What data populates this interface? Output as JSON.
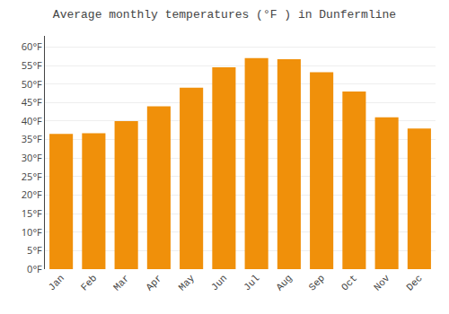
{
  "chart_data": {
    "type": "bar",
    "title": "Average monthly temperatures (°F ) in Dunfermline",
    "categories": [
      "Jan",
      "Feb",
      "Mar",
      "Apr",
      "May",
      "Jun",
      "Jul",
      "Aug",
      "Sep",
      "Oct",
      "Nov",
      "Dec"
    ],
    "values": [
      36.5,
      36.7,
      40.0,
      44.0,
      49.0,
      54.5,
      57.0,
      56.7,
      53.2,
      48.0,
      41.0,
      38.0
    ],
    "color": "#F0900A",
    "ylim": [
      0,
      63
    ],
    "yticks": [
      {
        "value": 0,
        "label": "0°F"
      },
      {
        "value": 5,
        "label": "5°F"
      },
      {
        "value": 10,
        "label": "10°F"
      },
      {
        "value": 15,
        "label": "15°F"
      },
      {
        "value": 20,
        "label": "20°F"
      },
      {
        "value": 25,
        "label": "25°F"
      },
      {
        "value": 30,
        "label": "30°F"
      },
      {
        "value": 35,
        "label": "35°F"
      },
      {
        "value": 40,
        "label": "40°F"
      },
      {
        "value": 45,
        "label": "45°F"
      },
      {
        "value": 50,
        "label": "50°F"
      },
      {
        "value": 55,
        "label": "55°F"
      },
      {
        "value": 60,
        "label": "60°F"
      }
    ],
    "grid": true
  }
}
